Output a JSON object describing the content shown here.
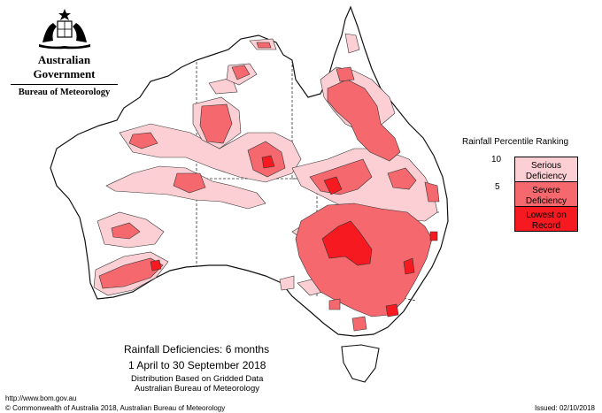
{
  "header": {
    "government": "Australian Government",
    "bureau": "Bureau of Meteorology"
  },
  "legend": {
    "title": "Rainfall Percentile Ranking",
    "ticks": [
      "10",
      "5"
    ],
    "categories": [
      {
        "label_line1": "Serious",
        "label_line2": "Deficiency",
        "color": "#fbcfd3"
      },
      {
        "label_line1": "Severe",
        "label_line2": "Deficiency",
        "color": "#f5696e"
      },
      {
        "label_line1": "Lowest on",
        "label_line2": "Record",
        "color": "#f6191f"
      }
    ]
  },
  "map": {
    "title": "Rainfall Deficiencies: 6 months",
    "period": "1 April to 30 September 2018",
    "note1": "Distribution Based on Gridded Data",
    "note2": "Australian Bureau of Meteorology"
  },
  "footer": {
    "url": "http://www.bom.gov.au",
    "copyright": "© Commonwealth of Australia 2018, Australian Bureau of Meteorology",
    "issued": "Issued: 02/10/2018"
  },
  "colors": {
    "serious": "#fbcfd3",
    "severe": "#f5696e",
    "record": "#f6191f",
    "outline": "#111111"
  }
}
